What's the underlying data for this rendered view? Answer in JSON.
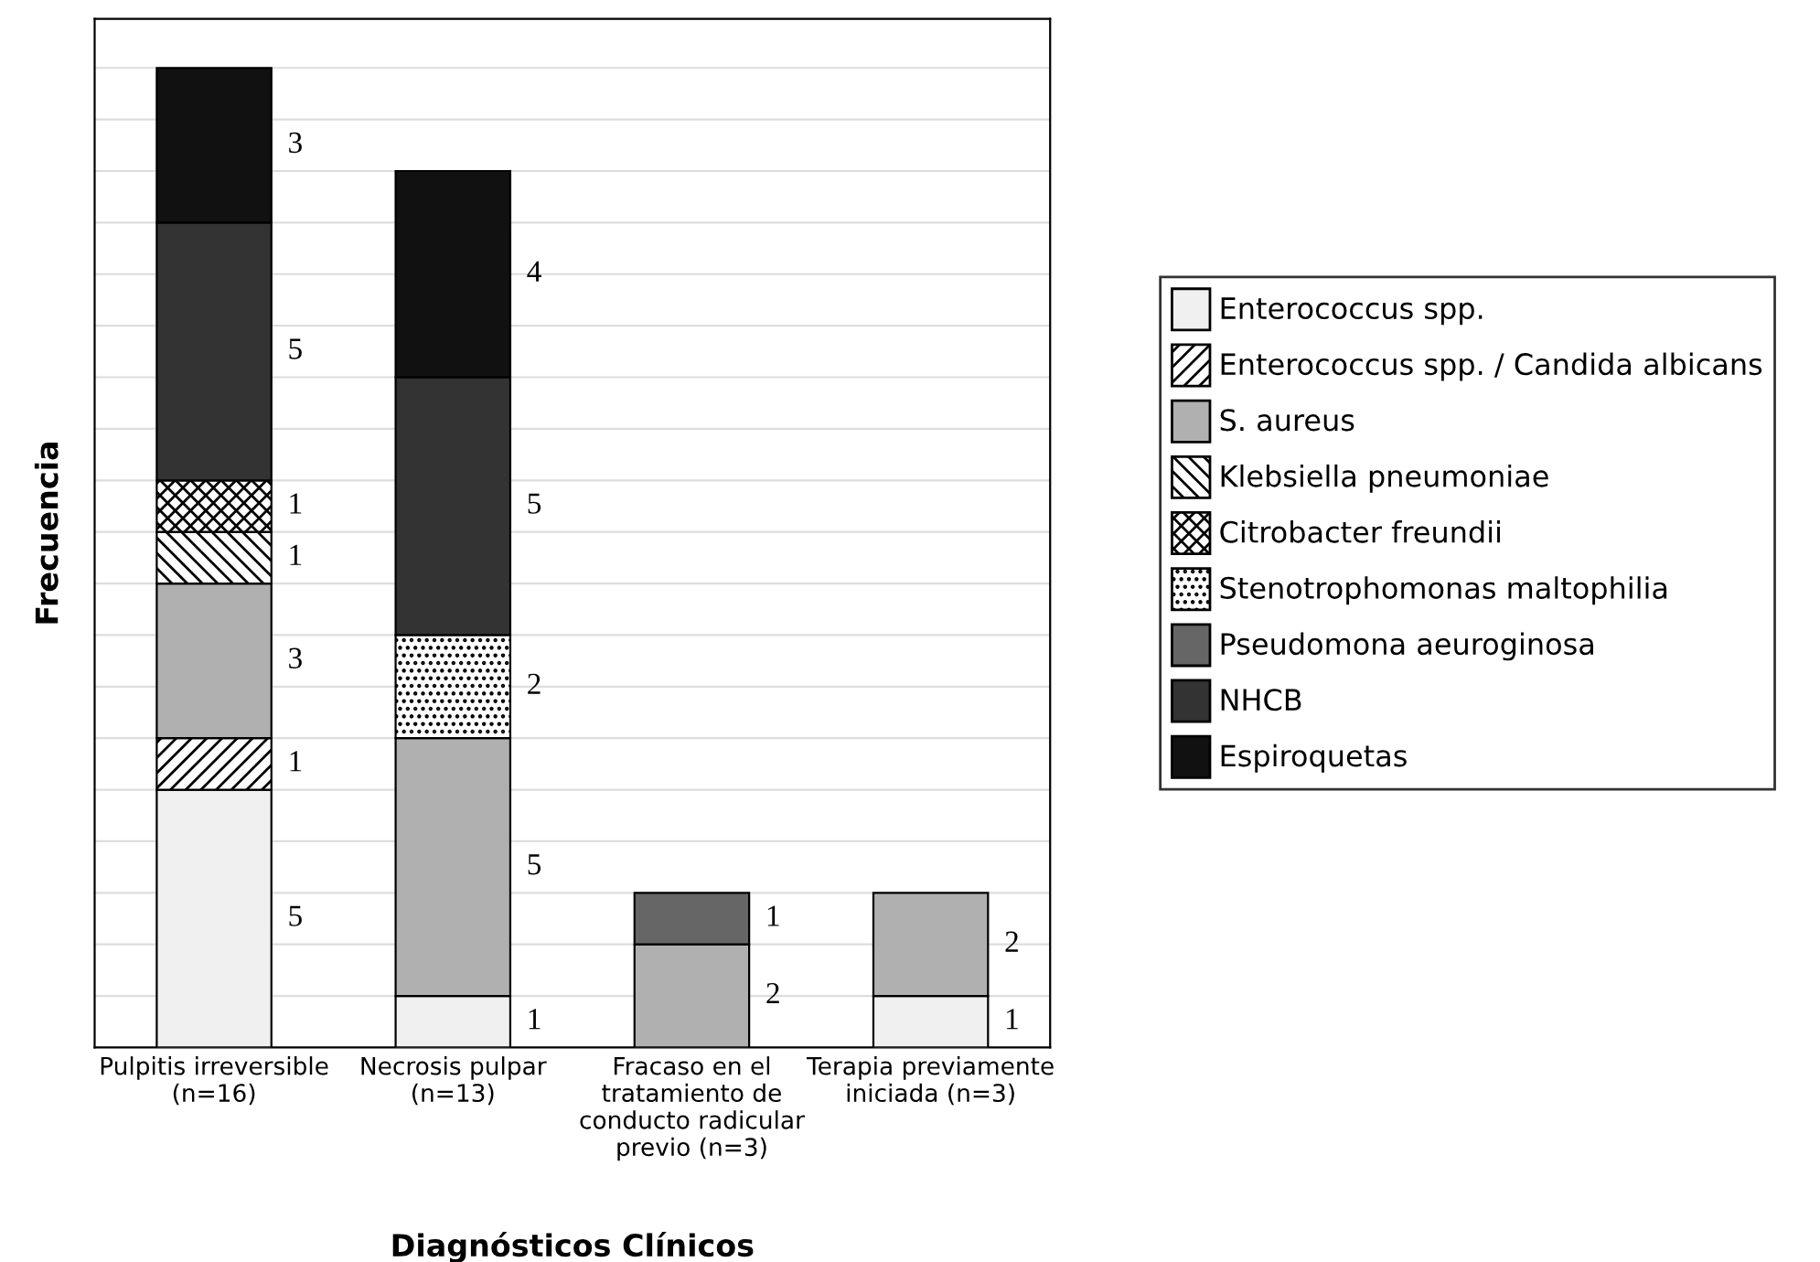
{
  "chart_data": {
    "type": "bar",
    "stacked": true,
    "xlabel": "Diagnósticos Clínicos",
    "ylabel": "Frecuencia",
    "categories": [
      "Pulpitis irreversible\n(n=16)",
      "Necrosis pulpar\n(n=13)",
      "Fracaso en el\ntratamiento de\nconducto radicular\nprevio (n=3)",
      "Terapia previamente\niniciada (n=3)"
    ],
    "series": [
      {
        "name": "Enterococcus spp.",
        "color": "#f0f0f0",
        "values": [
          5,
          1,
          null,
          1
        ]
      },
      {
        "name": "Enterococcus spp. / Candida albicans",
        "color": "#000000",
        "values": [
          1,
          null,
          null,
          null
        ]
      },
      {
        "name": "S. aureus",
        "color": "#b0b0b0",
        "values": [
          3,
          5,
          2,
          2
        ]
      },
      {
        "name": "Klebsiella pneumoniae",
        "color": "#000000",
        "values": [
          1,
          null,
          null,
          null
        ]
      },
      {
        "name": "Citrobacter freundii",
        "color": "#000000",
        "values": [
          1,
          null,
          null,
          null
        ]
      },
      {
        "name": "Stenotrophomonas maltophilia",
        "color": "#000000",
        "values": [
          null,
          2,
          null,
          null
        ]
      },
      {
        "name": "Pseudomona aeuroginosa",
        "color": "#666666",
        "values": [
          null,
          null,
          1,
          null
        ]
      },
      {
        "name": "NHCB",
        "color": "#333333",
        "values": [
          5,
          5,
          null,
          null
        ]
      },
      {
        "name": "Espiroquetas",
        "color": "#111111",
        "values": [
          3,
          4,
          null,
          null
        ]
      }
    ],
    "data_labels": true,
    "grid": "y",
    "legend": "right",
    "tick_labels": "x"
  }
}
